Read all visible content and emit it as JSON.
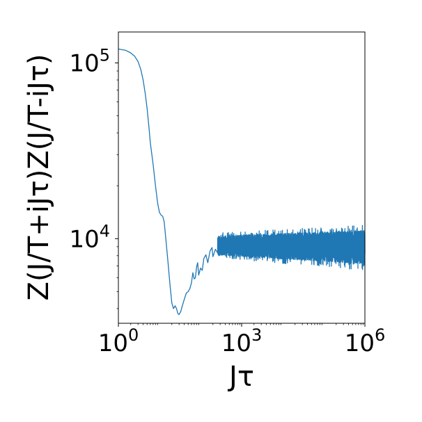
{
  "chart_data": {
    "type": "line",
    "xlabel": "Jτ",
    "ylabel": "Z(J/T+iJτ)Z(J/T-iJτ)",
    "xscale": "log",
    "yscale": "log",
    "xlim": [
      1,
      1000000
    ],
    "ylim": [
      3300,
      150000
    ],
    "grid": false,
    "legend": "none",
    "line_color": "#1f77b4",
    "x_ticks": [
      {
        "value": 1,
        "base": "10",
        "exp": "0"
      },
      {
        "value": 1000,
        "base": "10",
        "exp": "3"
      },
      {
        "value": 1000000,
        "base": "10",
        "exp": "6"
      }
    ],
    "y_ticks": [
      {
        "value": 10000,
        "base": "10",
        "exp": "4"
      },
      {
        "value": 100000,
        "base": "10",
        "exp": "5"
      }
    ],
    "series": [
      {
        "points": [
          [
            1,
            120000
          ],
          [
            1.5,
            118000
          ],
          [
            2,
            114000
          ],
          [
            2.5,
            109000
          ],
          [
            3,
            102000
          ],
          [
            3.5,
            92000
          ],
          [
            4,
            80000
          ],
          [
            4.5,
            67000
          ],
          [
            5,
            55000
          ],
          [
            5.5,
            44000
          ],
          [
            6,
            35000
          ],
          [
            7,
            26500
          ],
          [
            8,
            20000
          ],
          [
            9,
            16000
          ],
          [
            10,
            14100
          ],
          [
            11,
            13600
          ],
          [
            12,
            13400
          ],
          [
            13,
            12500
          ],
          [
            14,
            10500
          ],
          [
            16,
            7500
          ],
          [
            18,
            5500
          ],
          [
            20,
            4300
          ],
          [
            22,
            4000
          ],
          [
            24,
            4150
          ],
          [
            26,
            4000
          ],
          [
            28,
            3750
          ],
          [
            30,
            3700
          ],
          [
            33,
            3850
          ],
          [
            36,
            4150
          ],
          [
            40,
            4500
          ],
          [
            45,
            4900
          ],
          [
            50,
            5000
          ],
          [
            55,
            5200
          ],
          [
            60,
            5600
          ],
          [
            65,
            6400
          ],
          [
            70,
            5900
          ],
          [
            75,
            6000
          ],
          [
            80,
            6900
          ],
          [
            85,
            7300
          ],
          [
            90,
            6200
          ],
          [
            100,
            6800
          ],
          [
            110,
            6600
          ],
          [
            120,
            7700
          ],
          [
            135,
            8100
          ],
          [
            150,
            7300
          ],
          [
            170,
            8500
          ],
          [
            190,
            8900
          ],
          [
            200,
            7900
          ],
          [
            230,
            8700
          ],
          [
            260,
            8300
          ]
        ],
        "noise": {
          "x_start": 260,
          "x_end": 1000000,
          "center_start": 9000,
          "center_end": 8900,
          "amp_start_low": 0.14,
          "amp_start_high": 0.2,
          "amp_end_low": 0.26,
          "amp_end_high": 0.34
        }
      }
    ]
  }
}
